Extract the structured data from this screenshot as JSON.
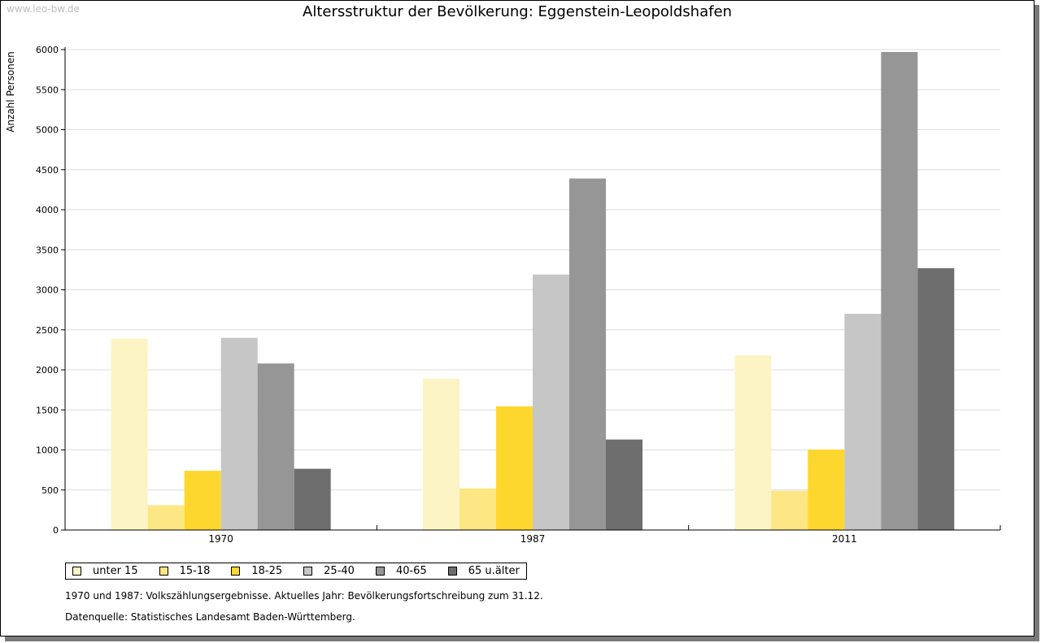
{
  "watermark": "www.leo-bw.de",
  "chart_data": {
    "type": "bar",
    "title": "Altersstruktur der Bevölkerung: Eggenstein-Leopoldshafen",
    "ylabel": "Anzahl Personen",
    "xlabel": "",
    "categories": [
      "1970",
      "1987",
      "2011"
    ],
    "ylim": [
      0,
      6000
    ],
    "yticks": [
      0,
      500,
      1000,
      1500,
      2000,
      2500,
      3000,
      3500,
      4000,
      4500,
      5000,
      5500,
      6000
    ],
    "grid": true,
    "legend_position": "bottom",
    "series": [
      {
        "name": "unter 15",
        "color": "#fcf4c4",
        "values": [
          2390,
          1890,
          2180
        ]
      },
      {
        "name": "15-18",
        "color": "#fde684",
        "values": [
          310,
          520,
          490
        ]
      },
      {
        "name": "18-25",
        "color": "#fdd72e",
        "values": [
          740,
          1545,
          1005
        ]
      },
      {
        "name": "25-40",
        "color": "#c6c6c6",
        "values": [
          2400,
          3190,
          2700
        ]
      },
      {
        "name": "40-65",
        "color": "#969696",
        "values": [
          2080,
          4390,
          5970
        ]
      },
      {
        "name": "65 u.älter",
        "color": "#6e6e6e",
        "values": [
          765,
          1130,
          3270
        ]
      }
    ]
  },
  "notes": {
    "census": "1970 und 1987: Volkszählungsergebnisse. Aktuelles Jahr: Bevölkerungsfortschreibung zum 31.12.",
    "source": "Datenquelle: Statistisches Landesamt Baden-Württemberg."
  }
}
